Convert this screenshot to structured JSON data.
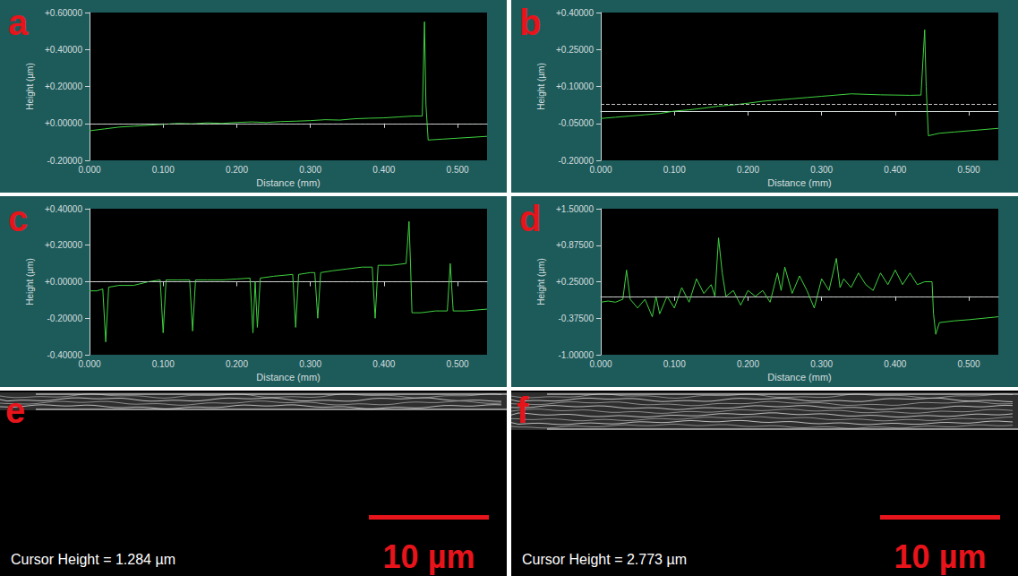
{
  "chart_data": [
    {
      "type": "line",
      "title": "a",
      "x_label": "Distance (mm)",
      "y_label": "Height (µm)",
      "color": "#3fd23f",
      "grid": false,
      "mean_line": 0,
      "xlim": [
        0,
        0.54
      ],
      "xticks": [
        {
          "value": 0,
          "label": "0.000"
        },
        {
          "value": 0.1,
          "label": "0.100"
        },
        {
          "value": 0.2,
          "label": "0.200"
        },
        {
          "value": 0.3,
          "label": "0.300"
        },
        {
          "value": 0.4,
          "label": "0.400"
        },
        {
          "value": 0.5,
          "label": "0.500"
        }
      ],
      "ylim": [
        -0.2,
        0.6
      ],
      "yticks": [
        {
          "value": -0.2,
          "label": "-0.20000"
        },
        {
          "value": 0,
          "label": "+0.00000"
        },
        {
          "value": 0.2,
          "label": "+0.20000"
        },
        {
          "value": 0.4,
          "label": "+0.40000"
        },
        {
          "value": 0.6,
          "label": "+0.60000"
        }
      ],
      "x": [
        0,
        0.02,
        0.04,
        0.06,
        0.08,
        0.1,
        0.12,
        0.14,
        0.16,
        0.18,
        0.2,
        0.22,
        0.24,
        0.26,
        0.28,
        0.3,
        0.32,
        0.34,
        0.36,
        0.38,
        0.4,
        0.42,
        0.44,
        0.452,
        0.455,
        0.457,
        0.46,
        0.48,
        0.5,
        0.54
      ],
      "values": [
        -0.04,
        -0.03,
        -0.02,
        -0.015,
        -0.01,
        -0.005,
        0,
        -0.002,
        0.003,
        0,
        0.005,
        0.008,
        0.005,
        0.01,
        0.012,
        0.015,
        0.02,
        0.018,
        0.025,
        0.028,
        0.03,
        0.035,
        0.04,
        0.04,
        0.55,
        0.1,
        -0.09,
        -0.085,
        -0.08,
        -0.07
      ]
    },
    {
      "type": "line",
      "title": "b",
      "x_label": "Distance (mm)",
      "y_label": "Height (µm)",
      "color": "#3fd23f",
      "grid": false,
      "mean_line": 0.03,
      "xlim": [
        0,
        0.54
      ],
      "xticks": [
        {
          "value": 0,
          "label": "0.000"
        },
        {
          "value": 0.1,
          "label": "0.100"
        },
        {
          "value": 0.2,
          "label": "0.200"
        },
        {
          "value": 0.3,
          "label": "0.300"
        },
        {
          "value": 0.4,
          "label": "0.400"
        },
        {
          "value": 0.5,
          "label": "0.500"
        }
      ],
      "ylim": [
        -0.2,
        0.4
      ],
      "yticks": [
        {
          "value": -0.2,
          "label": "-0.20000"
        },
        {
          "value": -0.05,
          "label": "-0.05000"
        },
        {
          "value": 0.1,
          "label": "+0.10000"
        },
        {
          "value": 0.25,
          "label": "+0.25000"
        },
        {
          "value": 0.4,
          "label": "+0.40000"
        }
      ],
      "x": [
        0,
        0.02,
        0.04,
        0.06,
        0.08,
        0.1,
        0.12,
        0.14,
        0.16,
        0.18,
        0.2,
        0.22,
        0.24,
        0.26,
        0.28,
        0.3,
        0.32,
        0.34,
        0.36,
        0.38,
        0.4,
        0.42,
        0.435,
        0.44,
        0.442,
        0.445,
        0.46,
        0.48,
        0.5,
        0.54
      ],
      "values": [
        -0.03,
        -0.025,
        -0.02,
        -0.015,
        -0.01,
        0,
        0.005,
        0.012,
        0.02,
        0.025,
        0.032,
        0.04,
        0.045,
        0.05,
        0.055,
        0.06,
        0.065,
        0.07,
        0.068,
        0.066,
        0.065,
        0.064,
        0.065,
        0.33,
        0.1,
        -0.1,
        -0.09,
        -0.085,
        -0.08,
        -0.07
      ]
    },
    {
      "type": "line",
      "title": "c",
      "x_label": "Distance (mm)",
      "y_label": "Height (µm)",
      "color": "#3fd23f",
      "grid": false,
      "mean_line": 0,
      "xlim": [
        0,
        0.54
      ],
      "xticks": [
        {
          "value": 0,
          "label": "0.000"
        },
        {
          "value": 0.1,
          "label": "0.100"
        },
        {
          "value": 0.2,
          "label": "0.200"
        },
        {
          "value": 0.3,
          "label": "0.300"
        },
        {
          "value": 0.4,
          "label": "0.400"
        },
        {
          "value": 0.5,
          "label": "0.500"
        }
      ],
      "ylim": [
        -0.4,
        0.4
      ],
      "yticks": [
        {
          "value": -0.4,
          "label": "-0.40000"
        },
        {
          "value": -0.2,
          "label": "-0.20000"
        },
        {
          "value": 0,
          "label": "+0.00000"
        },
        {
          "value": 0.2,
          "label": "+0.20000"
        },
        {
          "value": 0.4,
          "label": "+0.40000"
        }
      ],
      "x": [
        0,
        0.01,
        0.018,
        0.022,
        0.026,
        0.04,
        0.06,
        0.08,
        0.096,
        0.1,
        0.104,
        0.12,
        0.136,
        0.14,
        0.144,
        0.16,
        0.18,
        0.2,
        0.218,
        0.222,
        0.225,
        0.228,
        0.232,
        0.25,
        0.276,
        0.28,
        0.284,
        0.3,
        0.306,
        0.31,
        0.314,
        0.33,
        0.35,
        0.37,
        0.384,
        0.388,
        0.392,
        0.41,
        0.43,
        0.434,
        0.436,
        0.438,
        0.45,
        0.47,
        0.486,
        0.49,
        0.494,
        0.51,
        0.54
      ],
      "values": [
        -0.05,
        -0.05,
        -0.04,
        -0.33,
        -0.03,
        -0.02,
        -0.02,
        0,
        0.01,
        -0.28,
        0.01,
        0.01,
        0.01,
        -0.27,
        0.01,
        0.01,
        0.01,
        0.015,
        0.02,
        -0.28,
        0.0,
        -0.25,
        0.02,
        0.03,
        0.04,
        -0.25,
        0.04,
        0.05,
        0.05,
        -0.2,
        0.05,
        0.06,
        0.07,
        0.08,
        0.08,
        -0.2,
        0.09,
        0.09,
        0.1,
        0.33,
        0.1,
        -0.17,
        -0.17,
        -0.16,
        -0.16,
        0.1,
        -0.16,
        -0.16,
        -0.15
      ]
    },
    {
      "type": "line",
      "title": "d",
      "x_label": "Distance (mm)",
      "y_label": "Height (µm)",
      "color": "#3fd23f",
      "grid": false,
      "mean_line": 0,
      "xlim": [
        0,
        0.54
      ],
      "xticks": [
        {
          "value": 0,
          "label": "0.000"
        },
        {
          "value": 0.1,
          "label": "0.100"
        },
        {
          "value": 0.2,
          "label": "0.200"
        },
        {
          "value": 0.3,
          "label": "0.300"
        },
        {
          "value": 0.4,
          "label": "0.400"
        },
        {
          "value": 0.5,
          "label": "0.500"
        }
      ],
      "ylim": [
        -1.0,
        1.5
      ],
      "yticks": [
        {
          "value": -1.0,
          "label": "-1.00000"
        },
        {
          "value": -0.375,
          "label": "-0.37500"
        },
        {
          "value": 0.25,
          "label": "+0.25000"
        },
        {
          "value": 0.875,
          "label": "+0.87500"
        },
        {
          "value": 1.5,
          "label": "+1.50000"
        }
      ],
      "x": [
        0,
        0.01,
        0.02,
        0.03,
        0.035,
        0.04,
        0.05,
        0.06,
        0.07,
        0.075,
        0.08,
        0.09,
        0.1,
        0.11,
        0.12,
        0.13,
        0.14,
        0.15,
        0.155,
        0.16,
        0.165,
        0.17,
        0.18,
        0.19,
        0.2,
        0.21,
        0.22,
        0.23,
        0.24,
        0.245,
        0.25,
        0.26,
        0.27,
        0.28,
        0.29,
        0.3,
        0.31,
        0.32,
        0.325,
        0.33,
        0.34,
        0.35,
        0.36,
        0.37,
        0.38,
        0.39,
        0.4,
        0.41,
        0.42,
        0.43,
        0.44,
        0.45,
        0.452,
        0.455,
        0.46,
        0.48,
        0.5,
        0.54
      ],
      "values": [
        -0.1,
        -0.08,
        -0.1,
        -0.05,
        0.45,
        -0.05,
        -0.2,
        -0.05,
        -0.35,
        0.0,
        -0.3,
        0.0,
        -0.2,
        0.15,
        -0.1,
        0.3,
        0.05,
        0.2,
        0.0,
        1.0,
        0.4,
        0.0,
        0.1,
        -0.15,
        0.1,
        0.0,
        0.1,
        -0.1,
        0.4,
        0.1,
        0.5,
        0.05,
        0.35,
        0.1,
        -0.2,
        0.3,
        0.1,
        0.65,
        0.15,
        0.3,
        0.15,
        0.4,
        0.2,
        0.1,
        0.4,
        0.2,
        0.45,
        0.2,
        0.4,
        0.2,
        0.25,
        0.25,
        -0.3,
        -0.65,
        -0.45,
        -0.42,
        -0.4,
        -0.35
      ]
    }
  ],
  "images": [
    {
      "label": "e",
      "caption": "Cursor Height = 1.284 µm",
      "scale_bar": "10 µm"
    },
    {
      "label": "f",
      "caption": "Cursor Height = 2.773 µm",
      "scale_bar": "10 µm"
    }
  ]
}
